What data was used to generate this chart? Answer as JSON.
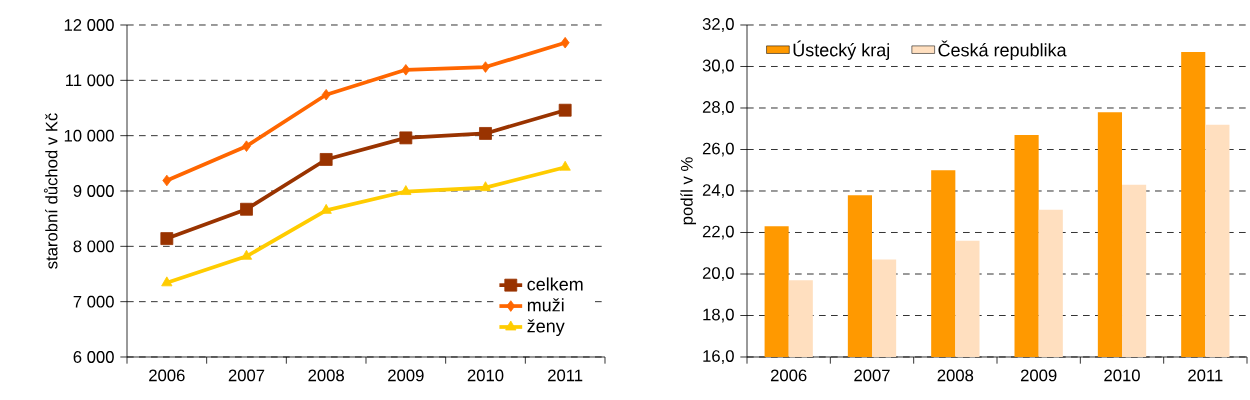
{
  "chart_data": [
    {
      "type": "line",
      "ylabel": "starobní důchod v Kč",
      "categories": [
        "2006",
        "2007",
        "2008",
        "2009",
        "2010",
        "2011"
      ],
      "series": [
        {
          "name": "celkem",
          "color": "#993300",
          "marker": "square",
          "values": [
            8140,
            8670,
            9570,
            9960,
            10040,
            10460
          ]
        },
        {
          "name": "muži",
          "color": "#ff6600",
          "marker": "diamond",
          "values": [
            9190,
            9810,
            10740,
            11190,
            11240,
            11680
          ]
        },
        {
          "name": "ženy",
          "color": "#ffcc00",
          "marker": "triangle",
          "values": [
            7340,
            7820,
            8650,
            8990,
            9060,
            9430
          ]
        }
      ],
      "ylim": [
        6000,
        12000
      ],
      "yticks": [
        {
          "value": 6000,
          "label": "6 000"
        },
        {
          "value": 7000,
          "label": "7 000"
        },
        {
          "value": 8000,
          "label": "8 000"
        },
        {
          "value": 9000,
          "label": "9 000"
        },
        {
          "value": 10000,
          "label": "10 000"
        },
        {
          "value": 11000,
          "label": "11 000"
        },
        {
          "value": 12000,
          "label": "12 000"
        }
      ],
      "grid": "y",
      "legend": "bottom right",
      "line_style": "solid"
    },
    {
      "type": "bar",
      "ylabel": "podíl v %",
      "categories": [
        "2006",
        "2007",
        "2008",
        "2009",
        "2010",
        "2011"
      ],
      "series": [
        {
          "name": "Ústecký kraj",
          "color": "#ff9900",
          "values": [
            22.3,
            23.8,
            25.0,
            26.7,
            27.8,
            30.7
          ]
        },
        {
          "name": "Česká republika",
          "color": "#ffdfbf",
          "values": [
            19.7,
            20.7,
            21.6,
            23.1,
            24.3,
            27.2
          ]
        }
      ],
      "ylim": [
        16,
        32
      ],
      "yticks": [
        {
          "value": 16,
          "label": "16,0"
        },
        {
          "value": 18,
          "label": "18,0"
        },
        {
          "value": 20,
          "label": "20,0"
        },
        {
          "value": 22,
          "label": "22,0"
        },
        {
          "value": 24,
          "label": "24,0"
        },
        {
          "value": 26,
          "label": "26,0"
        },
        {
          "value": 28,
          "label": "28,0"
        },
        {
          "value": 30,
          "label": "30,0"
        },
        {
          "value": 32,
          "label": "32,0"
        }
      ],
      "grid": "y",
      "legend": "top left"
    }
  ]
}
